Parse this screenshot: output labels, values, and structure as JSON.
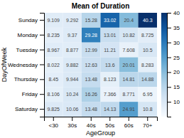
{
  "chart_data": {
    "type": "heatmap",
    "title": "Mean of Duration",
    "xlabel": "AgeGroup",
    "ylabel": "DayOfWeek",
    "x_categories": [
      "<30",
      "30s",
      "40s",
      "50s",
      "60s",
      "70+"
    ],
    "y_categories": [
      "Sunday",
      "Monday",
      "Tuesday",
      "Wednesday",
      "Thursday",
      "Friday",
      "Saturday"
    ],
    "values": [
      [
        9.109,
        9.292,
        15.28,
        33.02,
        20.4,
        40.3
      ],
      [
        8.235,
        9.37,
        29.28,
        13.01,
        10.82,
        8.725
      ],
      [
        8.967,
        8.877,
        12.99,
        11.21,
        7.608,
        10.5
      ],
      [
        8.022,
        9.882,
        12.63,
        13.6,
        20.01,
        8.283
      ],
      [
        8.45,
        9.944,
        13.48,
        8.123,
        14.81,
        14.88
      ],
      [
        8.106,
        10.24,
        16.26,
        7.366,
        8.771,
        6.95
      ],
      [
        9.825,
        10.06,
        13.48,
        14.13,
        24.91,
        10.8
      ]
    ],
    "color": "Blues",
    "colorbar_lim": [
      5,
      40
    ],
    "colorbar_ticks": [
      10,
      15,
      20,
      25,
      30,
      35,
      40
    ],
    "data_labels": true
  }
}
